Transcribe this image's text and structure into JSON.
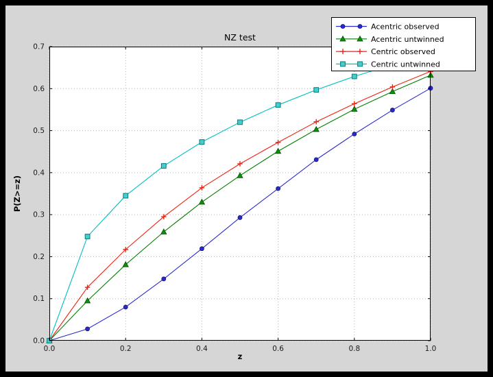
{
  "figure": {
    "window_background": "#000000",
    "facecolor": "#d6d6d6",
    "axes_facecolor": "#ffffff",
    "spine_color": "#000000",
    "grid_color": "#b3b3b3",
    "tick_label_color": "#1a1a1a",
    "legend_background": "#ffffff",
    "legend_border": "#000000"
  },
  "chart_data": {
    "type": "line",
    "title": "NZ test",
    "xlabel": "z",
    "ylabel": "P(Z>=z)",
    "xlim": [
      0.0,
      1.0
    ],
    "ylim": [
      0.0,
      0.7
    ],
    "xticks": [
      0.0,
      0.2,
      0.4,
      0.6,
      0.8,
      1.0
    ],
    "yticks": [
      0.0,
      0.1,
      0.2,
      0.3,
      0.4,
      0.5,
      0.6,
      0.7
    ],
    "grid": true,
    "grid_style": "dotted",
    "legend_position": "upper right",
    "x": [
      0.0,
      0.1,
      0.2,
      0.3,
      0.4,
      0.5,
      0.6,
      0.7,
      0.8,
      0.9,
      1.0
    ],
    "series": [
      {
        "name": "Acentric observed",
        "color": "#2a2ad0",
        "marker": "circle",
        "marker_fill": "#2a2ad0",
        "marker_edge": "#12126b",
        "values": [
          0.0,
          0.028,
          0.08,
          0.147,
          0.219,
          0.293,
          0.362,
          0.431,
          0.492,
          0.549,
          0.601
        ]
      },
      {
        "name": "Acentric untwinned",
        "color": "#007f00",
        "marker": "triangle",
        "marker_fill": "#0d8f0d",
        "marker_edge": "#004d00",
        "values": [
          0.0,
          0.095,
          0.181,
          0.259,
          0.33,
          0.393,
          0.451,
          0.503,
          0.551,
          0.593,
          0.632
        ]
      },
      {
        "name": "Centric observed",
        "color": "#ee2211",
        "marker": "plus",
        "marker_fill": "#ee2211",
        "marker_edge": "#ee2211",
        "values": [
          0.0,
          0.127,
          0.217,
          0.295,
          0.364,
          0.421,
          0.472,
          0.521,
          0.564,
          0.604,
          0.641
        ]
      },
      {
        "name": "Centric untwinned",
        "color": "#00bfbf",
        "marker": "square",
        "marker_fill": "#49cccc",
        "marker_edge": "#007d7d",
        "values": [
          0.0,
          0.248,
          0.345,
          0.416,
          0.473,
          0.52,
          0.561,
          0.597,
          0.629,
          0.657,
          0.683
        ]
      }
    ]
  }
}
